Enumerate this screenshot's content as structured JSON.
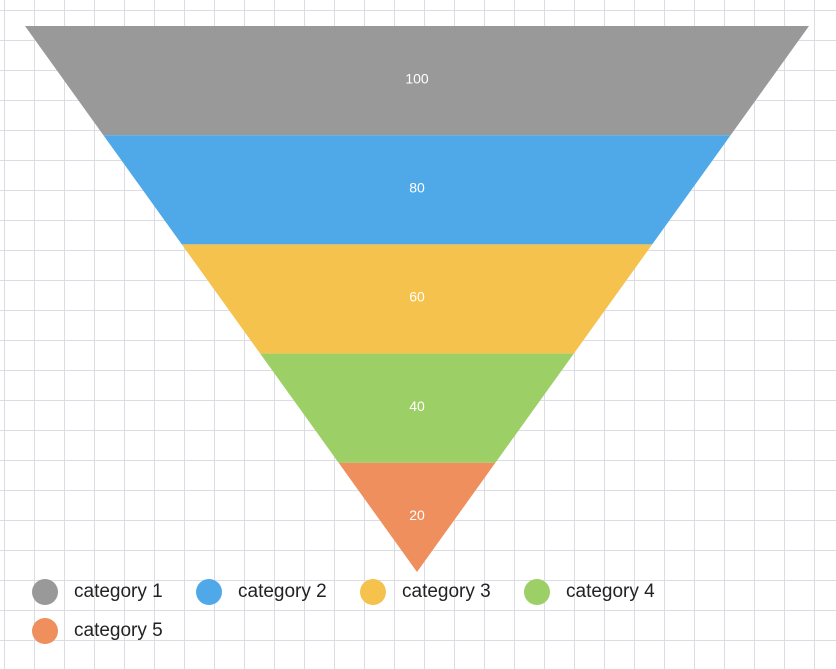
{
  "chart_data": {
    "type": "funnel",
    "title": "",
    "categories": [
      "category 1",
      "category 2",
      "category 3",
      "category 4",
      "category 5"
    ],
    "values": [
      100,
      80,
      60,
      40,
      20
    ],
    "value_labels": [
      "100",
      "80",
      "60",
      "40",
      "20"
    ],
    "colors": [
      "#999999",
      "#4fa9e8",
      "#f5c24d",
      "#9ccf65",
      "#ef8f5d"
    ],
    "legend": {
      "position": "bottom-left",
      "entries": [
        "category 1",
        "category 2",
        "category 3",
        "category 4",
        "category 5"
      ]
    },
    "grid": true
  }
}
